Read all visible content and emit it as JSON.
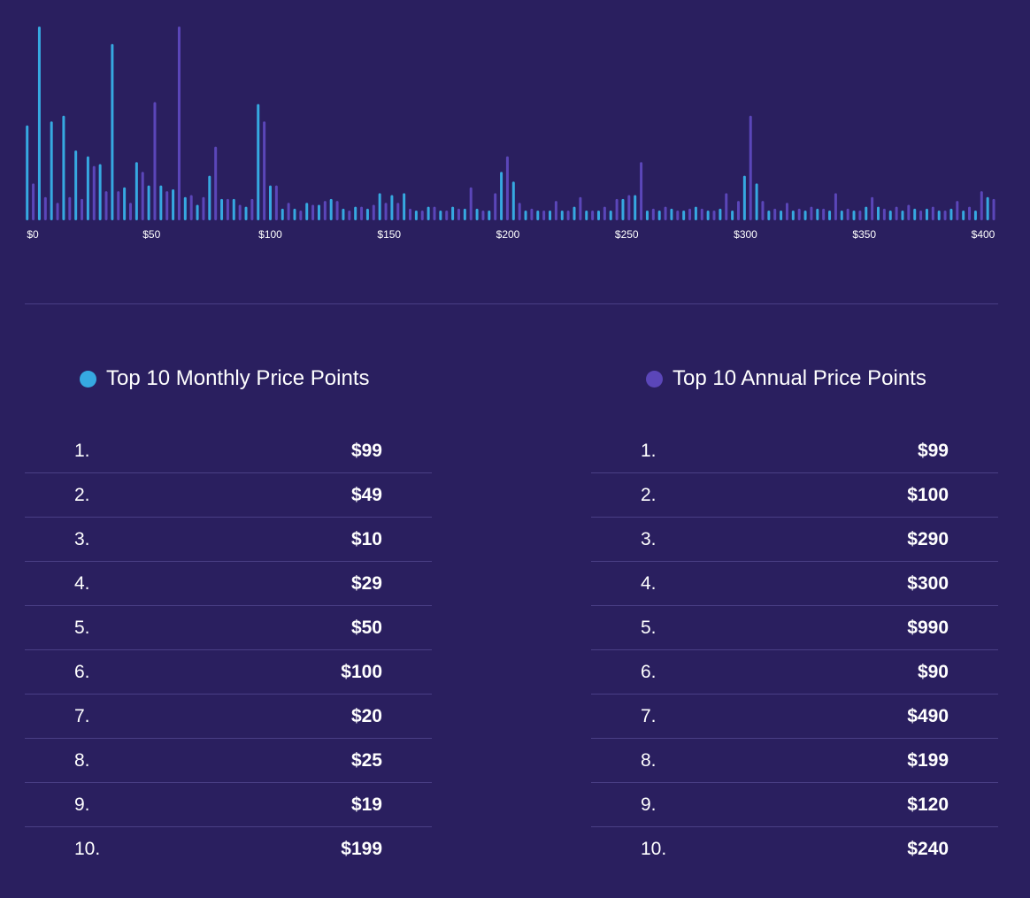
{
  "colors": {
    "background": "#2a1f5f",
    "monthly": "#36a9e1",
    "annual": "#5b46b9"
  },
  "chart_data": {
    "type": "bar",
    "title": "",
    "xlabel": "",
    "ylabel": "",
    "bucket_size": 5,
    "x_tick_labels": [
      "$0",
      "$50",
      "$100",
      "$150",
      "$200",
      "$250",
      "$300",
      "$350",
      "$400"
    ],
    "x_tick_values": [
      0,
      50,
      100,
      150,
      200,
      250,
      300,
      350,
      400
    ],
    "xlim": [
      0,
      400
    ],
    "ylim": [
      0,
      100
    ],
    "grid": false,
    "series": [
      {
        "name": "Top 10 Monthly Price Points",
        "color": "#36a9e1",
        "values": [
          49,
          100,
          51,
          54,
          36,
          33,
          29,
          91,
          17,
          30,
          18,
          18,
          16,
          12,
          8,
          23,
          11,
          11,
          7,
          60,
          18,
          6,
          6,
          9,
          8,
          11,
          6,
          7,
          6,
          14,
          13,
          14,
          5,
          7,
          5,
          7,
          6,
          6,
          5,
          25,
          20,
          5,
          5,
          5,
          5,
          7,
          5,
          5,
          5,
          11,
          13,
          5,
          5,
          6,
          5,
          7,
          5,
          6,
          5,
          23,
          19,
          5,
          5,
          5,
          5,
          6,
          5,
          5,
          5,
          7,
          7,
          5,
          5,
          6,
          6,
          5,
          6,
          5,
          5,
          12
        ]
      },
      {
        "name": "Top 10 Annual Price Points",
        "color": "#5b46b9",
        "values": [
          19,
          12,
          9,
          12,
          11,
          28,
          15,
          15,
          9,
          25,
          61,
          15,
          100,
          13,
          12,
          38,
          11,
          8,
          11,
          51,
          18,
          9,
          5,
          8,
          10,
          10,
          5,
          7,
          8,
          9,
          9,
          6,
          5,
          7,
          5,
          6,
          17,
          5,
          14,
          33,
          9,
          6,
          5,
          10,
          5,
          12,
          5,
          7,
          11,
          13,
          30,
          6,
          7,
          5,
          6,
          6,
          5,
          14,
          10,
          54,
          10,
          6,
          9,
          6,
          7,
          6,
          14,
          6,
          5,
          12,
          6,
          7,
          8,
          5,
          7,
          5,
          10,
          7,
          15,
          11
        ]
      }
    ]
  },
  "monthly": {
    "title": "Top 10 Monthly Price Points",
    "rows": [
      {
        "rank": "1.",
        "price": "$99"
      },
      {
        "rank": "2.",
        "price": "$49"
      },
      {
        "rank": "3.",
        "price": "$10"
      },
      {
        "rank": "4.",
        "price": "$29"
      },
      {
        "rank": "5.",
        "price": "$50"
      },
      {
        "rank": "6.",
        "price": "$100"
      },
      {
        "rank": "7.",
        "price": "$20"
      },
      {
        "rank": "8.",
        "price": "$25"
      },
      {
        "rank": "9.",
        "price": "$19"
      },
      {
        "rank": "10.",
        "price": "$199"
      }
    ]
  },
  "annual": {
    "title": "Top 10 Annual Price Points",
    "rows": [
      {
        "rank": "1.",
        "price": "$99"
      },
      {
        "rank": "2.",
        "price": "$100"
      },
      {
        "rank": "3.",
        "price": "$290"
      },
      {
        "rank": "4.",
        "price": "$300"
      },
      {
        "rank": "5.",
        "price": "$990"
      },
      {
        "rank": "6.",
        "price": "$90"
      },
      {
        "rank": "7.",
        "price": "$490"
      },
      {
        "rank": "8.",
        "price": "$199"
      },
      {
        "rank": "9.",
        "price": "$120"
      },
      {
        "rank": "10.",
        "price": "$240"
      }
    ]
  }
}
